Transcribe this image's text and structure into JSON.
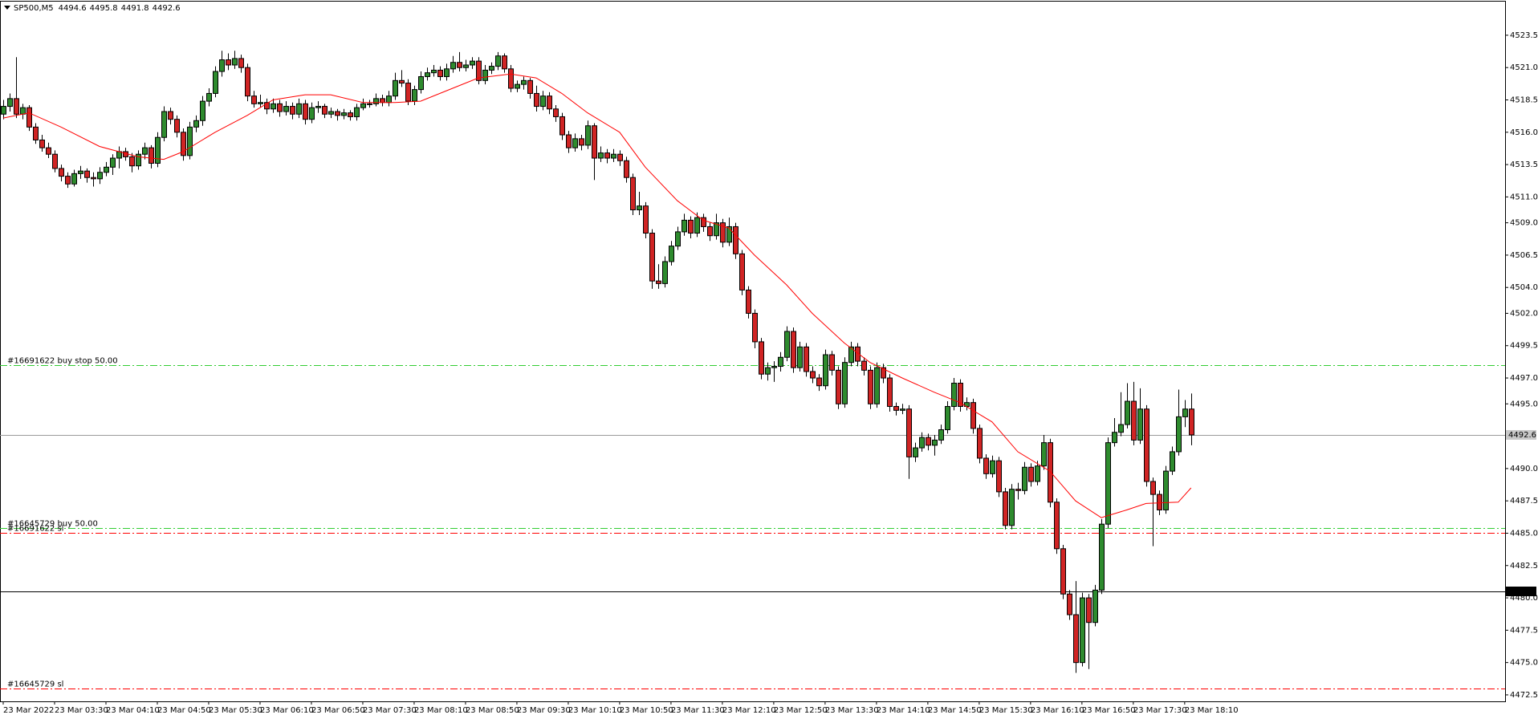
{
  "chart_data": {
    "type": "candlestick",
    "title": "SP500,M5",
    "xlim": [
      -0.5,
      233.9
    ],
    "ylim": [
      4472.0,
      4526.1
    ],
    "xticks": [
      {
        "value": 0,
        "label": "23 Mar 2022"
      },
      {
        "value": 8,
        "label": "23 Mar 03:30"
      },
      {
        "value": 16,
        "label": "23 Mar 04:10"
      },
      {
        "value": 24,
        "label": "23 Mar 04:50"
      },
      {
        "value": 32,
        "label": "23 Mar 05:30"
      },
      {
        "value": 40,
        "label": "23 Mar 06:10"
      },
      {
        "value": 48,
        "label": "23 Mar 06:50"
      },
      {
        "value": 56,
        "label": "23 Mar 07:30"
      },
      {
        "value": 64,
        "label": "23 Mar 08:10"
      },
      {
        "value": 72,
        "label": "23 Mar 08:50"
      },
      {
        "value": 80,
        "label": "23 Mar 09:30"
      },
      {
        "value": 88,
        "label": "23 Mar 10:10"
      },
      {
        "value": 96,
        "label": "23 Mar 10:50"
      },
      {
        "value": 104,
        "label": "23 Mar 11:30"
      },
      {
        "value": 112,
        "label": "23 Mar 12:10"
      },
      {
        "value": 120,
        "label": "23 Mar 12:50"
      },
      {
        "value": 128,
        "label": "23 Mar 13:30"
      },
      {
        "value": 136,
        "label": "23 Mar 14:10"
      },
      {
        "value": 144,
        "label": "23 Mar 14:50"
      },
      {
        "value": 152,
        "label": "23 Mar 15:30"
      },
      {
        "value": 160,
        "label": "23 Mar 16:10"
      },
      {
        "value": 168,
        "label": "23 Mar 16:50"
      },
      {
        "value": 176,
        "label": "23 Mar 17:30"
      },
      {
        "value": 184,
        "label": "23 Mar 18:10"
      }
    ],
    "yticks": [
      4523.5,
      {
        "value": 4521,
        "label": "4521.0"
      },
      4518.5,
      {
        "value": 4516,
        "label": "4516.0"
      },
      4513.5,
      {
        "value": 4511,
        "label": "4511.0"
      },
      {
        "value": 4509,
        "label": "4509.0"
      },
      4506.5,
      {
        "value": 4504,
        "label": "4504.0"
      },
      {
        "value": 4502,
        "label": "4502.0"
      },
      4499.5,
      {
        "value": 4497,
        "label": "4497.0"
      },
      {
        "value": 4495,
        "label": "4495.0"
      },
      {
        "value": 4490,
        "label": "4490.0"
      },
      4487.5,
      {
        "value": 4485,
        "label": "4485.0"
      },
      4482.5,
      {
        "value": 4480,
        "label": "4480.0"
      },
      4477.5,
      {
        "value": 4475,
        "label": "4475.0"
      },
      4472.5
    ],
    "bull_color": "#2e8b2e",
    "bear_color": "#d02424",
    "candles": [
      [
        4517.4,
        4518.5,
        4517.0,
        4518.0
      ],
      [
        4518.0,
        4519.0,
        4517.6,
        4518.6
      ],
      [
        4518.6,
        4521.8,
        4517.1,
        4517.4
      ],
      [
        4517.4,
        4518.2,
        4517.0,
        4517.9
      ],
      [
        4517.9,
        4518.1,
        4516.1,
        4516.4
      ],
      [
        4516.4,
        4516.7,
        4515.1,
        4515.4
      ],
      [
        4515.4,
        4515.8,
        4514.5,
        4514.8
      ],
      [
        4514.8,
        4515.2,
        4514.0,
        4514.3
      ],
      [
        4514.3,
        4514.6,
        4512.9,
        4513.2
      ],
      [
        4513.2,
        4513.5,
        4512.2,
        4512.6
      ],
      [
        4512.6,
        4512.9,
        4511.7,
        4512.0
      ],
      [
        4512.0,
        4513.1,
        4511.8,
        4512.8
      ],
      [
        4512.8,
        4513.4,
        4512.4,
        4513.0
      ],
      [
        4513.0,
        4513.2,
        4512.1,
        4512.5
      ],
      [
        4512.5,
        4512.9,
        4511.8,
        4512.4
      ],
      [
        4512.4,
        4513.3,
        4512.0,
        4512.9
      ],
      [
        4512.9,
        4513.7,
        4512.6,
        4513.3
      ],
      [
        4513.3,
        4514.3,
        4512.7,
        4514.0
      ],
      [
        4514.0,
        4514.9,
        4513.2,
        4514.5
      ],
      [
        4514.5,
        4514.8,
        4513.8,
        4514.1
      ],
      [
        4514.1,
        4514.4,
        4512.9,
        4513.4
      ],
      [
        4513.4,
        4514.6,
        4513.1,
        4514.3
      ],
      [
        4514.3,
        4515.2,
        4513.9,
        4514.8
      ],
      [
        4514.8,
        4515.0,
        4513.2,
        4513.6
      ],
      [
        4513.6,
        4516.0,
        4513.3,
        4515.6
      ],
      [
        4515.6,
        4518.0,
        4515.3,
        4517.6
      ],
      [
        4517.6,
        4517.9,
        4516.6,
        4517.0
      ],
      [
        4517.0,
        4517.3,
        4515.6,
        4516.0
      ],
      [
        4516.0,
        4516.3,
        4513.8,
        4514.2
      ],
      [
        4514.2,
        4516.8,
        4513.9,
        4516.4
      ],
      [
        4516.4,
        4517.3,
        4516.0,
        4516.9
      ],
      [
        4516.9,
        4518.8,
        4516.5,
        4518.4
      ],
      [
        4518.4,
        4519.4,
        4518.0,
        4519.0
      ],
      [
        4519.0,
        4521.1,
        4518.7,
        4520.7
      ],
      [
        4520.7,
        4522.3,
        4520.3,
        4521.6
      ],
      [
        4521.6,
        4522.1,
        4520.8,
        4521.2
      ],
      [
        4521.2,
        4522.3,
        4520.9,
        4521.7
      ],
      [
        4521.7,
        4522.0,
        4520.6,
        4521.0
      ],
      [
        4521.0,
        4521.3,
        4518.4,
        4518.8
      ],
      [
        4518.8,
        4519.2,
        4517.9,
        4518.2
      ],
      [
        4518.2,
        4518.9,
        4517.9,
        4518.3
      ],
      [
        4518.3,
        4518.6,
        4517.4,
        4517.8
      ],
      [
        4517.8,
        4518.6,
        4517.5,
        4518.2
      ],
      [
        4518.2,
        4518.5,
        4517.2,
        4517.6
      ],
      [
        4517.6,
        4518.4,
        4517.3,
        4518.0
      ],
      [
        4518.0,
        4518.3,
        4517.0,
        4517.4
      ],
      [
        4517.4,
        4518.6,
        4517.1,
        4518.2
      ],
      [
        4518.2,
        4518.5,
        4516.6,
        4517.0
      ],
      [
        4517.0,
        4518.3,
        4516.7,
        4517.9
      ],
      [
        4517.9,
        4518.4,
        4517.5,
        4518.0
      ],
      [
        4518.0,
        4518.2,
        4517.1,
        4517.4
      ],
      [
        4517.4,
        4517.9,
        4517.1,
        4517.6
      ],
      [
        4517.6,
        4517.8,
        4516.9,
        4517.3
      ],
      [
        4517.3,
        4517.8,
        4517.0,
        4517.5
      ],
      [
        4517.5,
        4517.7,
        4516.9,
        4517.2
      ],
      [
        4517.2,
        4518.2,
        4516.9,
        4517.9
      ],
      [
        4517.9,
        4518.6,
        4517.7,
        4518.2
      ],
      [
        4518.2,
        4518.5,
        4517.9,
        4518.2
      ],
      [
        4518.2,
        4519.0,
        4518.0,
        4518.6
      ],
      [
        4518.6,
        4518.9,
        4518.0,
        4518.3
      ],
      [
        4518.3,
        4519.2,
        4518.0,
        4518.8
      ],
      [
        4518.8,
        4520.6,
        4518.5,
        4520.0
      ],
      [
        4520.0,
        4520.8,
        4519.5,
        4519.8
      ],
      [
        4519.8,
        4520.1,
        4518.1,
        4518.4
      ],
      [
        4518.4,
        4519.6,
        4518.1,
        4519.3
      ],
      [
        4519.3,
        4520.7,
        4519.0,
        4520.3
      ],
      [
        4520.3,
        4521.0,
        4520.0,
        4520.6
      ],
      [
        4520.6,
        4521.2,
        4520.3,
        4520.8
      ],
      [
        4520.8,
        4521.1,
        4520.0,
        4520.3
      ],
      [
        4520.3,
        4521.3,
        4520.0,
        4520.9
      ],
      [
        4520.9,
        4521.9,
        4520.6,
        4521.4
      ],
      [
        4521.4,
        4522.2,
        4520.7,
        4521.0
      ],
      [
        4521.0,
        4521.6,
        4520.7,
        4521.2
      ],
      [
        4521.2,
        4521.8,
        4520.9,
        4521.5
      ],
      [
        4521.5,
        4521.8,
        4519.7,
        4520.0
      ],
      [
        4520.0,
        4521.2,
        4519.7,
        4520.8
      ],
      [
        4520.8,
        4521.4,
        4520.5,
        4521.1
      ],
      [
        4521.1,
        4522.2,
        4520.8,
        4521.9
      ],
      [
        4521.9,
        4522.1,
        4520.6,
        4520.9
      ],
      [
        4520.9,
        4521.2,
        4519.1,
        4519.4
      ],
      [
        4519.4,
        4520.0,
        4519.1,
        4519.7
      ],
      [
        4519.7,
        4520.3,
        4519.3,
        4520.0
      ],
      [
        4520.0,
        4520.2,
        4518.6,
        4519.0
      ],
      [
        4519.0,
        4519.6,
        4517.6,
        4518.0
      ],
      [
        4518.0,
        4519.2,
        4517.7,
        4518.8
      ],
      [
        4518.8,
        4519.1,
        4517.4,
        4517.8
      ],
      [
        4517.8,
        4518.1,
        4516.8,
        4517.2
      ],
      [
        4517.2,
        4517.5,
        4515.4,
        4515.8
      ],
      [
        4515.8,
        4516.1,
        4514.4,
        4514.8
      ],
      [
        4514.8,
        4515.9,
        4514.5,
        4515.5
      ],
      [
        4515.5,
        4515.8,
        4514.6,
        4515.0
      ],
      [
        4515.0,
        4516.9,
        4514.7,
        4516.5
      ],
      [
        4516.5,
        4516.7,
        4512.3,
        4514.0
      ],
      [
        4514.0,
        4514.9,
        4513.7,
        4514.4
      ],
      [
        4514.4,
        4514.7,
        4513.6,
        4514.0
      ],
      [
        4514.0,
        4514.7,
        4513.7,
        4514.3
      ],
      [
        4514.3,
        4514.6,
        4513.4,
        4513.8
      ],
      [
        4513.8,
        4514.1,
        4512.1,
        4512.5
      ],
      [
        4512.5,
        4512.8,
        4509.6,
        4510.0
      ],
      [
        4510.0,
        4511.4,
        4509.6,
        4510.3
      ],
      [
        4510.3,
        4510.6,
        4507.8,
        4508.2
      ],
      [
        4508.2,
        4508.5,
        4503.9,
        4504.5
      ],
      [
        4504.5,
        4505.8,
        4503.9,
        4504.3
      ],
      [
        4504.3,
        4506.4,
        4504.0,
        4506.0
      ],
      [
        4506.0,
        4507.6,
        4505.7,
        4507.2
      ],
      [
        4507.2,
        4508.7,
        4506.9,
        4508.3
      ],
      [
        4508.3,
        4509.7,
        4508.0,
        4509.2
      ],
      [
        4509.2,
        4509.5,
        4507.8,
        4508.2
      ],
      [
        4508.2,
        4509.8,
        4507.9,
        4509.4
      ],
      [
        4509.4,
        4509.7,
        4508.3,
        4508.7
      ],
      [
        4508.7,
        4509.0,
        4507.6,
        4508.0
      ],
      [
        4508.0,
        4509.7,
        4507.7,
        4509.0
      ],
      [
        4509.0,
        4509.3,
        4507.1,
        4507.5
      ],
      [
        4507.5,
        4509.4,
        4507.2,
        4508.7
      ],
      [
        4508.7,
        4509.0,
        4506.2,
        4506.6
      ],
      [
        4506.6,
        4506.9,
        4503.4,
        4503.8
      ],
      [
        4503.8,
        4504.1,
        4501.6,
        4502.0
      ],
      [
        4502.0,
        4502.3,
        4499.3,
        4499.8
      ],
      [
        4499.8,
        4500.1,
        4496.9,
        4497.3
      ],
      [
        4497.3,
        4498.2,
        4496.8,
        4497.8
      ],
      [
        4497.8,
        4498.3,
        4496.7,
        4497.9
      ],
      [
        4497.9,
        4499.0,
        4497.5,
        4498.6
      ],
      [
        4498.6,
        4501.0,
        4498.3,
        4500.6
      ],
      [
        4500.6,
        4500.9,
        4497.4,
        4497.8
      ],
      [
        4497.8,
        4499.8,
        4497.5,
        4499.4
      ],
      [
        4499.4,
        4499.7,
        4497.1,
        4497.5
      ],
      [
        4497.5,
        4497.9,
        4496.6,
        4497.0
      ],
      [
        4497.0,
        4497.3,
        4496.0,
        4496.4
      ],
      [
        4496.4,
        4499.2,
        4496.1,
        4498.8
      ],
      [
        4498.8,
        4499.1,
        4497.2,
        4497.6
      ],
      [
        4497.6,
        4497.9,
        4494.6,
        4495.0
      ],
      [
        4495.0,
        4498.6,
        4494.7,
        4498.2
      ],
      [
        4498.2,
        4499.8,
        4497.9,
        4499.4
      ],
      [
        4499.4,
        4499.7,
        4497.9,
        4498.3
      ],
      [
        4498.3,
        4498.6,
        4497.2,
        4497.6
      ],
      [
        4497.6,
        4497.9,
        4494.6,
        4495.0
      ],
      [
        4495.0,
        4498.2,
        4494.7,
        4497.8
      ],
      [
        4497.8,
        4498.1,
        4496.6,
        4497.0
      ],
      [
        4497.0,
        4497.3,
        4494.4,
        4494.8
      ],
      [
        4494.8,
        4495.1,
        4494.1,
        4494.5
      ],
      [
        4494.5,
        4495.0,
        4494.2,
        4494.6
      ],
      [
        4494.6,
        4494.9,
        4489.2,
        4490.9
      ],
      [
        4490.9,
        4492.0,
        4490.5,
        4491.6
      ],
      [
        4491.6,
        4492.8,
        4491.3,
        4492.4
      ],
      [
        4492.4,
        4492.7,
        4491.4,
        4491.8
      ],
      [
        4491.8,
        4492.6,
        4491.0,
        4492.2
      ],
      [
        4492.2,
        4493.4,
        4491.9,
        4493.0
      ],
      [
        4493.0,
        4495.2,
        4492.7,
        4494.8
      ],
      [
        4494.8,
        4497.0,
        4494.5,
        4496.6
      ],
      [
        4496.6,
        4496.9,
        4494.4,
        4494.8
      ],
      [
        4494.8,
        4495.5,
        4494.5,
        4495.1
      ],
      [
        4495.1,
        4495.4,
        4492.7,
        4493.1
      ],
      [
        4493.1,
        4493.4,
        4490.4,
        4490.8
      ],
      [
        4490.8,
        4491.1,
        4489.2,
        4489.6
      ],
      [
        4489.6,
        4491.0,
        4489.3,
        4490.6
      ],
      [
        4490.6,
        4490.9,
        4487.8,
        4488.2
      ],
      [
        4488.2,
        4488.5,
        4485.3,
        4485.6
      ],
      [
        4485.6,
        4488.8,
        4485.3,
        4488.4
      ],
      [
        4488.4,
        4488.9,
        4487.6,
        4488.3
      ],
      [
        4488.3,
        4490.5,
        4488.0,
        4490.1
      ],
      [
        4490.1,
        4490.4,
        4488.6,
        4489.0
      ],
      [
        4489.0,
        4490.6,
        4488.7,
        4490.2
      ],
      [
        4490.2,
        4492.6,
        4489.9,
        4492.0
      ],
      [
        4492.0,
        4492.3,
        4487.0,
        4487.4
      ],
      [
        4487.4,
        4487.7,
        4483.4,
        4483.8
      ],
      [
        4483.8,
        4484.1,
        4479.9,
        4480.3
      ],
      [
        4480.3,
        4480.6,
        4478.3,
        4478.7
      ],
      [
        4478.7,
        4481.3,
        4474.2,
        4475.0
      ],
      [
        4475.0,
        4480.4,
        4474.7,
        4480.0
      ],
      [
        4480.0,
        4480.3,
        4474.5,
        4478.1
      ],
      [
        4478.1,
        4481.0,
        4477.8,
        4480.6
      ],
      [
        4480.6,
        4486.1,
        4480.3,
        4485.7
      ],
      [
        4485.7,
        4492.4,
        4485.4,
        4492.0
      ],
      [
        4492.0,
        4493.9,
        4491.7,
        4492.8
      ],
      [
        4492.8,
        4495.9,
        4492.5,
        4493.4
      ],
      [
        4493.4,
        4496.6,
        4493.1,
        4495.2
      ],
      [
        4495.2,
        4496.7,
        4491.8,
        4492.2
      ],
      [
        4492.2,
        4496.2,
        4491.9,
        4494.6
      ],
      [
        4494.6,
        4494.9,
        4488.6,
        4489.0
      ],
      [
        4489.0,
        4489.3,
        4484.0,
        4488.0
      ],
      [
        4488.0,
        4488.3,
        4486.4,
        4486.8
      ],
      [
        4486.8,
        4490.2,
        4486.5,
        4489.8
      ],
      [
        4489.8,
        4491.7,
        4489.5,
        4491.3
      ],
      [
        4491.3,
        4496.1,
        4491.0,
        4494.0
      ],
      [
        4494.0,
        4495.3,
        4493.2,
        4494.6
      ],
      [
        4494.6,
        4495.8,
        4491.8,
        4492.6
      ]
    ],
    "ma": {
      "color": "#ff0000",
      "x": [
        0,
        4,
        9,
        15,
        21,
        25,
        28,
        33,
        38,
        42,
        47,
        51,
        56,
        61,
        65,
        70,
        74,
        79,
        83,
        87,
        91,
        96,
        100,
        105,
        109,
        113,
        117,
        122,
        126,
        131,
        135,
        140,
        145,
        149,
        154,
        158,
        163,
        167,
        171,
        175,
        178,
        183,
        185
      ],
      "values": [
        4517.1,
        4517.5,
        4516.4,
        4514.9,
        4514.1,
        4513.9,
        4514.5,
        4516.0,
        4517.3,
        4518.5,
        4518.9,
        4518.9,
        4518.3,
        4518.3,
        4518.4,
        4519.4,
        4520.2,
        4520.5,
        4520.2,
        4519.0,
        4517.5,
        4516.0,
        4513.3,
        4510.7,
        4509.2,
        4508.6,
        4506.5,
        4504.2,
        4502.0,
        4499.7,
        4498.2,
        4497.0,
        4495.9,
        4495.1,
        4493.6,
        4491.3,
        4489.8,
        4487.5,
        4486.2,
        4486.8,
        4487.3,
        4487.4,
        4488.5
      ]
    },
    "levels": [
      {
        "label": "#16691622 buy stop 50.00",
        "value": 4498.0,
        "color": "#32cd32"
      },
      {
        "label": "#16645729 buy 50.00",
        "value": 4485.4,
        "color": "#32cd32"
      },
      {
        "label": "#16691622 sl",
        "value": 4485.0,
        "color": "#ff0000"
      },
      {
        "label": "#16645729 sl",
        "value": 4473.0,
        "color": "#ff0000"
      }
    ],
    "price_lines": [
      {
        "value": 4492.6,
        "color": "#9a9a9a",
        "box": "#c8c8c8",
        "text_color": "#000000"
      },
      {
        "value": 4480.5,
        "color": "#000000",
        "box": "#000000",
        "text_color": "#ffffff"
      }
    ]
  }
}
